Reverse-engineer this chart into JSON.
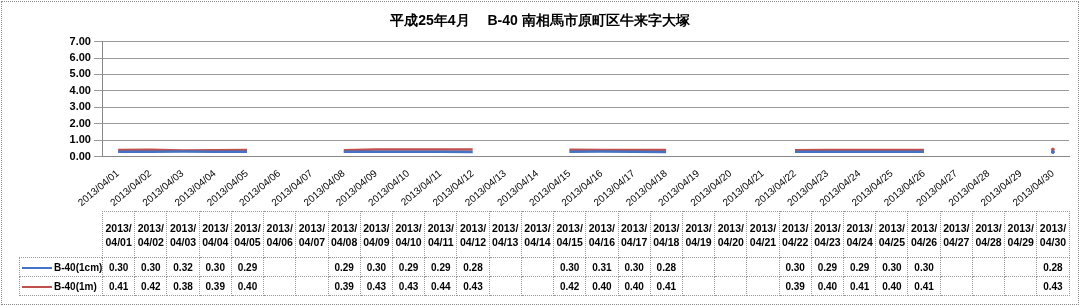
{
  "chart_data": {
    "type": "line",
    "title": "平成25年4月　 B-40 南相馬市原町区牛来字大塚",
    "categories": [
      "2013/04/01",
      "2013/04/02",
      "2013/04/03",
      "2013/04/04",
      "2013/04/05",
      "2013/04/06",
      "2013/04/07",
      "2013/04/08",
      "2013/04/09",
      "2013/04/10",
      "2013/04/11",
      "2013/04/12",
      "2013/04/13",
      "2013/04/14",
      "2013/04/15",
      "2013/04/16",
      "2013/04/17",
      "2013/04/18",
      "2013/04/19",
      "2013/04/20",
      "2013/04/21",
      "2013/04/22",
      "2013/04/23",
      "2013/04/24",
      "2013/04/25",
      "2013/04/26",
      "2013/04/27",
      "2013/04/28",
      "2013/04/29",
      "2013/04/30"
    ],
    "series": [
      {
        "name": "B-40(1cm)",
        "color": "#4472c4",
        "values": [
          0.3,
          0.3,
          0.32,
          0.3,
          0.29,
          null,
          null,
          0.29,
          0.3,
          0.29,
          0.29,
          0.28,
          null,
          null,
          0.3,
          0.31,
          0.3,
          0.28,
          null,
          null,
          null,
          0.3,
          0.29,
          0.29,
          0.3,
          0.3,
          null,
          null,
          null,
          0.28
        ],
        "value_labels": [
          "0.30",
          "0.30",
          "0.32",
          "0.30",
          "0.29",
          null,
          null,
          "0.29",
          "0.30",
          "0.29",
          "0.29",
          "0.28",
          null,
          null,
          "0.30",
          "0.31",
          "0.30",
          "0.28",
          null,
          null,
          null,
          "0.30",
          "0.29",
          "0.29",
          "0.30",
          "0.30",
          null,
          null,
          null,
          "0.28"
        ]
      },
      {
        "name": "B-40(1m)",
        "color": "#c0504d",
        "values": [
          0.41,
          0.42,
          0.38,
          0.39,
          0.4,
          null,
          null,
          0.39,
          0.43,
          0.43,
          0.44,
          0.43,
          null,
          null,
          0.42,
          0.4,
          0.4,
          0.41,
          null,
          null,
          null,
          0.39,
          0.4,
          0.41,
          0.4,
          0.41,
          null,
          null,
          null,
          0.43
        ],
        "value_labels": [
          "0.41",
          "0.42",
          "0.38",
          "0.39",
          "0.40",
          null,
          null,
          "0.39",
          "0.43",
          "0.43",
          "0.44",
          "0.43",
          null,
          null,
          "0.42",
          "0.40",
          "0.40",
          "0.41",
          null,
          null,
          null,
          "0.39",
          "0.40",
          "0.41",
          "0.40",
          "0.41",
          null,
          null,
          null,
          "0.43"
        ]
      }
    ],
    "ylim": [
      0,
      7
    ],
    "yticks": [
      {
        "value": 0,
        "label": "0.00"
      },
      {
        "value": 1,
        "label": "1.00"
      },
      {
        "value": 2,
        "label": "2.00"
      },
      {
        "value": 3,
        "label": "3.00"
      },
      {
        "value": 4,
        "label": "4.00"
      },
      {
        "value": 5,
        "label": "5.00"
      },
      {
        "value": 6,
        "label": "6.00"
      },
      {
        "value": 7,
        "label": "7.00"
      }
    ],
    "grid": "y",
    "legend": "bottom",
    "marker": "none",
    "line_style": "solid"
  }
}
